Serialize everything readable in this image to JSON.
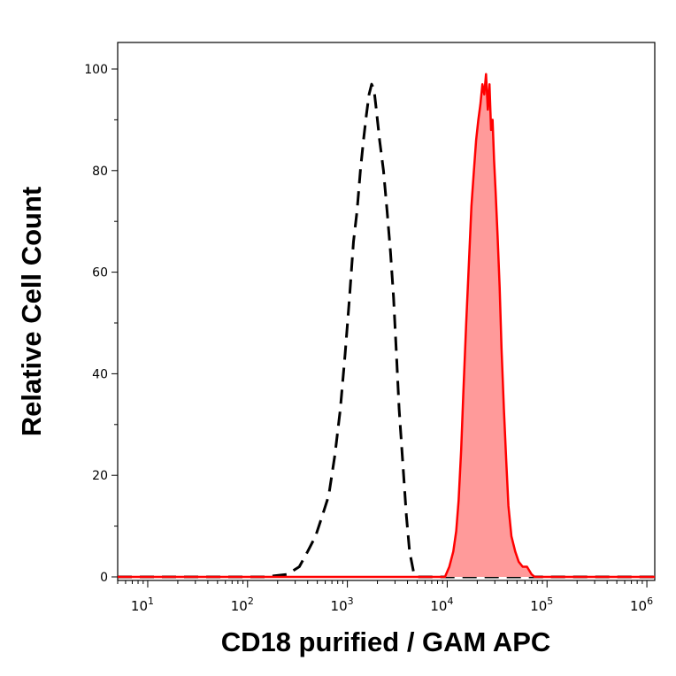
{
  "chart_data": {
    "type": "area",
    "xlabel": "CD18 purified / GAM APC",
    "ylabel": "Relative Cell Count",
    "x_scale": "log",
    "xlim": [
      5,
      1200000
    ],
    "ylim": [
      0,
      100
    ],
    "y_ticks": [
      "0",
      "20",
      "40",
      "60",
      "80",
      "100"
    ],
    "y_tick_values": [
      0,
      20,
      40,
      60,
      80,
      100
    ],
    "x_ticks": [
      {
        "base": "10",
        "exp": "1",
        "value": 10
      },
      {
        "base": "10",
        "exp": "2",
        "value": 100
      },
      {
        "base": "10",
        "exp": "3",
        "value": 1000
      },
      {
        "base": "10",
        "exp": "4",
        "value": 10000
      },
      {
        "base": "10",
        "exp": "5",
        "value": 100000
      },
      {
        "base": "10",
        "exp": "6",
        "value": 1000000
      }
    ],
    "grid": false,
    "legend": "none",
    "series": [
      {
        "style": "dashed",
        "color": "#000000",
        "fill": "none",
        "points": [
          [
            5,
            0
          ],
          [
            150,
            0
          ],
          [
            250,
            0.5
          ],
          [
            330,
            2
          ],
          [
            400,
            5
          ],
          [
            480,
            8
          ],
          [
            560,
            12
          ],
          [
            650,
            16
          ],
          [
            750,
            24
          ],
          [
            850,
            33
          ],
          [
            950,
            44
          ],
          [
            1050,
            55
          ],
          [
            1150,
            66
          ],
          [
            1250,
            72
          ],
          [
            1350,
            80
          ],
          [
            1450,
            86
          ],
          [
            1550,
            91
          ],
          [
            1650,
            95
          ],
          [
            1750,
            97
          ],
          [
            1850,
            96
          ],
          [
            1950,
            92
          ],
          [
            2100,
            86
          ],
          [
            2300,
            80
          ],
          [
            2500,
            72
          ],
          [
            2700,
            64
          ],
          [
            2900,
            55
          ],
          [
            3100,
            44
          ],
          [
            3300,
            33
          ],
          [
            3600,
            22
          ],
          [
            3900,
            12
          ],
          [
            4200,
            5
          ],
          [
            4600,
            1
          ],
          [
            5000,
            0
          ],
          [
            1200000,
            0
          ]
        ]
      },
      {
        "style": "solid",
        "color": "#ff0000",
        "fill": "#ff9a9a",
        "points": [
          [
            5,
            0
          ],
          [
            9500,
            0
          ],
          [
            10500,
            2
          ],
          [
            11500,
            5
          ],
          [
            12300,
            9
          ],
          [
            13000,
            15
          ],
          [
            13800,
            25
          ],
          [
            14500,
            36
          ],
          [
            15500,
            50
          ],
          [
            16500,
            62
          ],
          [
            17500,
            73
          ],
          [
            18500,
            80
          ],
          [
            19500,
            86
          ],
          [
            20500,
            90
          ],
          [
            21500,
            93
          ],
          [
            22500,
            97
          ],
          [
            23500,
            95
          ],
          [
            24500,
            99
          ],
          [
            25500,
            92
          ],
          [
            26500,
            97
          ],
          [
            27500,
            88
          ],
          [
            28500,
            90
          ],
          [
            29500,
            82
          ],
          [
            30500,
            76
          ],
          [
            32000,
            67
          ],
          [
            33500,
            57
          ],
          [
            35000,
            45
          ],
          [
            37000,
            33
          ],
          [
            39000,
            23
          ],
          [
            41000,
            14
          ],
          [
            44000,
            8
          ],
          [
            48000,
            5
          ],
          [
            52000,
            3
          ],
          [
            57000,
            2
          ],
          [
            63000,
            2
          ],
          [
            70000,
            0.5
          ],
          [
            75000,
            0
          ],
          [
            1200000,
            0
          ]
        ]
      }
    ]
  }
}
